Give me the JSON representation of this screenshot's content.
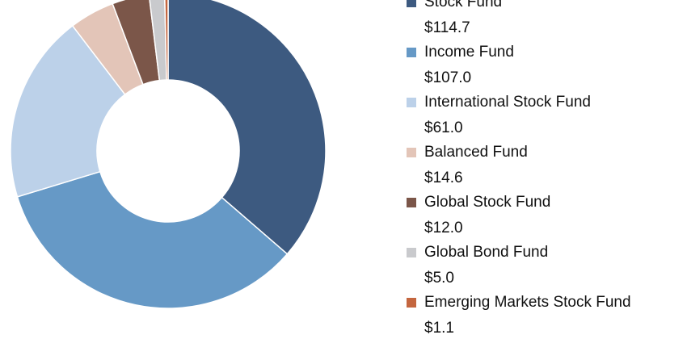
{
  "chart_data": {
    "type": "donut",
    "categories": [
      "Stock Fund",
      "Income Fund",
      "International Stock Fund",
      "Balanced Fund",
      "Global Stock Fund",
      "Global Bond Fund",
      "Emerging Markets Stock Fund"
    ],
    "values": [
      114.7,
      107.0,
      61.0,
      14.6,
      12.0,
      5.0,
      1.1
    ],
    "value_labels": [
      "$114.7",
      "$107.0",
      "$61.0",
      "$14.6",
      "$12.0",
      "$5.0",
      "$1.1"
    ],
    "colors": [
      "#3d5a80",
      "#6699c6",
      "#bcd1e9",
      "#e3c5b8",
      "#7b5649",
      "#c9cacd",
      "#c4663f"
    ],
    "legend": "right"
  }
}
